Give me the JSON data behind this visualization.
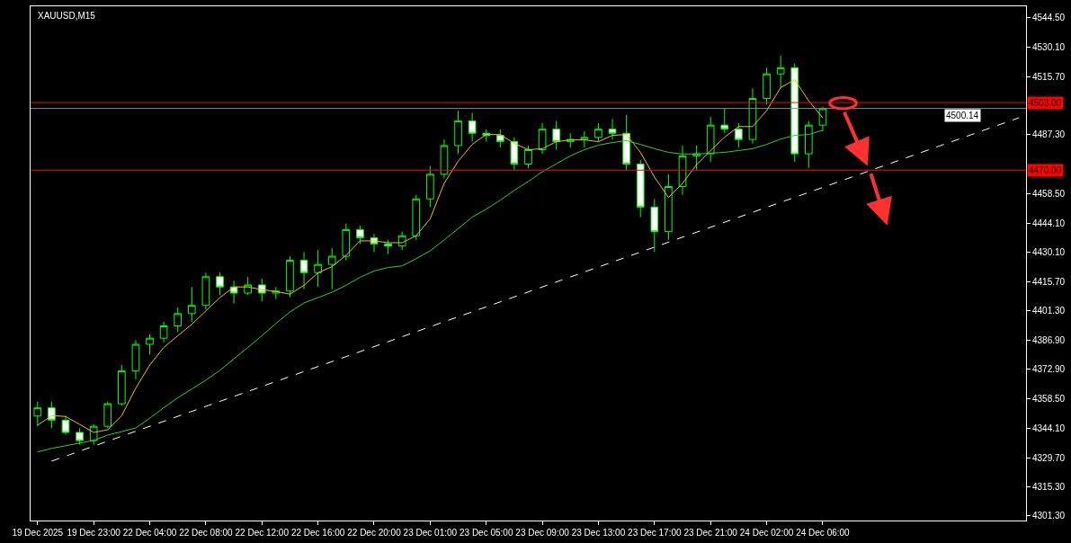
{
  "chart_data": {
    "type": "candlestick",
    "title": "XAUUSD,M15",
    "color": "#00ff00",
    "categories": [
      "19 Dec 2025",
      null,
      null,
      null,
      "19 Dec 23:00",
      null,
      null,
      null,
      "22 Dec 04:00",
      null,
      null,
      null,
      "22 Dec 08:00",
      null,
      null,
      null,
      "22 Dec 12:00",
      null,
      null,
      null,
      "22 Dec 16:00",
      null,
      null,
      null,
      "22 Dec 20:00",
      null,
      null,
      null,
      "23 Dec 01:00",
      null,
      null,
      null,
      "23 Dec 05:00",
      null,
      null,
      null,
      "23 Dec 09:00",
      null,
      null,
      null,
      "23 Dec 13:00",
      null,
      null,
      null,
      "23 Dec 17:00",
      null,
      null,
      null,
      "23 Dec 21:00",
      null,
      null,
      null,
      "24 Dec 02:00",
      null,
      null,
      null,
      "24 Dec 06:00",
      null,
      null,
      null,
      null,
      null,
      null,
      null,
      null,
      null,
      null,
      null,
      null,
      null,
      null
    ],
    "ohlc": [
      [
        4350,
        4357,
        4345,
        4354
      ],
      [
        4354,
        4357,
        4344,
        4348
      ],
      [
        4348,
        4350,
        4341,
        4342
      ],
      [
        4342,
        4344,
        4336,
        4338
      ],
      [
        4338,
        4346,
        4336,
        4345
      ],
      [
        4345,
        4357,
        4344,
        4356
      ],
      [
        4356,
        4375,
        4355,
        4372
      ],
      [
        4372,
        4387,
        4368,
        4385
      ],
      [
        4385,
        4390,
        4380,
        4388
      ],
      [
        4388,
        4396,
        4386,
        4394
      ],
      [
        4394,
        4403,
        4391,
        4400
      ],
      [
        4400,
        4413,
        4396,
        4404
      ],
      [
        4404,
        4420,
        4402,
        4418
      ],
      [
        4418,
        4420,
        4409,
        4413
      ],
      [
        4413,
        4416,
        4405,
        4410
      ],
      [
        4410,
        4418,
        4409,
        4414
      ],
      [
        4414,
        4417,
        4406,
        4410
      ],
      [
        4410,
        4413,
        4407,
        4411
      ],
      [
        4411,
        4428,
        4408,
        4426
      ],
      [
        4426,
        4430,
        4412,
        4420
      ],
      [
        4420,
        4431,
        4413,
        4424
      ],
      [
        4424,
        4432,
        4412,
        4428
      ],
      [
        4428,
        4444,
        4426,
        4441
      ],
      [
        4441,
        4443,
        4434,
        4437
      ],
      [
        4437,
        4439,
        4430,
        4434
      ],
      [
        4434,
        4436,
        4429,
        4433
      ],
      [
        4433,
        4440,
        4431,
        4438
      ],
      [
        4438,
        4458,
        4436,
        4456
      ],
      [
        4456,
        4472,
        4452,
        4468
      ],
      [
        4468,
        4485,
        4466,
        4482
      ],
      [
        4482,
        4499,
        4478,
        4494
      ],
      [
        4494,
        4498,
        4484,
        4488
      ],
      [
        4488,
        4490,
        4484,
        4487
      ],
      [
        4487,
        4490,
        4481,
        4484
      ],
      [
        4484,
        4486,
        4470,
        4473
      ],
      [
        4473,
        4482,
        4471,
        4480
      ],
      [
        4480,
        4493,
        4478,
        4490
      ],
      [
        4490,
        4494,
        4480,
        4484
      ],
      [
        4484,
        4488,
        4481,
        4485
      ],
      [
        4485,
        4489,
        4481,
        4486
      ],
      [
        4486,
        4493,
        4484,
        4490
      ],
      [
        4490,
        4495,
        4485,
        4488
      ],
      [
        4488,
        4497,
        4470,
        4473
      ],
      [
        4473,
        4475,
        4447,
        4452
      ],
      [
        4452,
        4456,
        4430,
        4440
      ],
      [
        4440,
        4468,
        4436,
        4462
      ],
      [
        4462,
        4482,
        4458,
        4477
      ],
      [
        4477,
        4482,
        4470,
        4478
      ],
      [
        4478,
        4496,
        4474,
        4492
      ],
      [
        4492,
        4500,
        4488,
        4490
      ],
      [
        4490,
        4493,
        4481,
        4485
      ],
      [
        4485,
        4510,
        4483,
        4505
      ],
      [
        4505,
        4520,
        4502,
        4517
      ],
      [
        4517,
        4526,
        4510,
        4520
      ],
      [
        4520,
        4522,
        4474,
        4478
      ],
      [
        4478,
        4494,
        4471,
        4492
      ],
      [
        4492,
        4501,
        4489,
        4500
      ],
      null,
      null,
      null,
      null,
      null,
      null,
      null,
      null,
      null,
      null,
      null,
      null,
      null,
      null
    ],
    "series": [
      {
        "type": "line",
        "color": "#f0c000",
        "values": [
          4345.5,
          4350.2,
          4349.8,
          4345.9,
          4342,
          4343.3,
          4350.2,
          4363.6,
          4374.9,
          4383.5,
          4389.2,
          4394.8,
          4401.3,
          4407.8,
          4413,
          4413,
          4411.7,
          4410.8,
          4409.5,
          4413.8,
          4419.9,
          4422.9,
          4428.5,
          4435.5,
          4435.5,
          4434.6,
          4434.6,
          4438,
          4446.3,
          4463.6,
          4474.4,
          4482.6,
          4487.4,
          4487.4,
          4483.1,
          4480,
          4480.5,
          4483.9,
          4484.8,
          4484.8,
          4483.9,
          4487,
          4487.4,
          4478.7,
          4466.6,
          4456.7,
          4463.6,
          4472.7,
          4479.6,
          4486.1,
          4491.3,
          4491.3,
          4499.1,
          4510.3,
          4514.2,
          4503.8,
          4495.6,
          null,
          null,
          null,
          null,
          null,
          null,
          null,
          null,
          null,
          null,
          null,
          null,
          null,
          null
        ]
      },
      {
        "type": "line",
        "color": "#32cd32",
        "values": [
          4332.5,
          4334.2,
          4335.5,
          4336.8,
          4338.1,
          4340.7,
          4342.4,
          4344.2,
          4348.9,
          4354.1,
          4358.9,
          4363.2,
          4367.5,
          4372.3,
          4377.9,
          4383.5,
          4389.2,
          4395.2,
          4400.8,
          4405.2,
          4407.8,
          4410.4,
          4413.8,
          4417.7,
          4420.8,
          4422.5,
          4423.3,
          4426.8,
          4430.7,
          4435.9,
          4441.5,
          4447.1,
          4451,
          4455.4,
          4460.1,
          4464.5,
          4469.2,
          4473.1,
          4477,
          4480,
          4482.2,
          4483.5,
          4484.4,
          4482.6,
          4480.5,
          4478.7,
          4477.9,
          4477.9,
          4478.3,
          4478.7,
          4479.6,
          4480.5,
          4482.6,
          4485.2,
          4487,
          4487.4,
          4489.5,
          null,
          null,
          null,
          null,
          null,
          null,
          null,
          null,
          null,
          null,
          null,
          null,
          null,
          null
        ]
      },
      {
        "type": "line",
        "color": "#ffffff",
        "line_style": "dashed",
        "values": [
          null,
          4328,
          null,
          null,
          null,
          null,
          null,
          null,
          null,
          null,
          null,
          null,
          null,
          null,
          null,
          null,
          null,
          null,
          null,
          null,
          null,
          null,
          null,
          null,
          null,
          null,
          null,
          null,
          null,
          null,
          null,
          null,
          null,
          null,
          null,
          null,
          null,
          null,
          null,
          null,
          null,
          null,
          null,
          null,
          null,
          null,
          null,
          null,
          null,
          null,
          null,
          null,
          null,
          null,
          null,
          null,
          null,
          null,
          null,
          null,
          null,
          null,
          null,
          null,
          null,
          null,
          null,
          null,
          null,
          null,
          4495.6
        ]
      }
    ],
    "ref_lines": [
      {
        "axis": "y",
        "value": 4500.14,
        "label": "4500.14",
        "color": "#8090a0"
      },
      {
        "axis": "y",
        "value": 4503,
        "label": "4503.00",
        "color": "#ff0000"
      },
      {
        "axis": "y",
        "value": 4470,
        "label": "4470.00",
        "color": "#ff0000"
      }
    ],
    "ylim": [
      4299,
      4550
    ],
    "yticks": [
      {
        "value": 4544.5,
        "label": "4544.50"
      },
      {
        "value": 4530.1,
        "label": "4530.10"
      },
      {
        "value": 4515.7,
        "label": "4515.70"
      },
      {
        "value": 4487.3,
        "label": "4487.30"
      },
      {
        "value": 4458.5,
        "label": "4458.50"
      },
      {
        "value": 4444.1,
        "label": "4444.10"
      },
      {
        "value": 4430.1,
        "label": "4430.10"
      },
      {
        "value": 4415.7,
        "label": "4415.70"
      },
      {
        "value": 4401.3,
        "label": "4401.30"
      },
      {
        "value": 4386.9,
        "label": "4386.90"
      },
      {
        "value": 4372.9,
        "label": "4372.90"
      },
      {
        "value": 4358.5,
        "label": "4358.50"
      },
      {
        "value": 4344.1,
        "label": "4344.10"
      },
      {
        "value": 4329.7,
        "label": "4329.70"
      },
      {
        "value": 4315.3,
        "label": "4315.30"
      },
      {
        "value": 4301.3,
        "label": "4301.30"
      }
    ],
    "grid": false
  }
}
